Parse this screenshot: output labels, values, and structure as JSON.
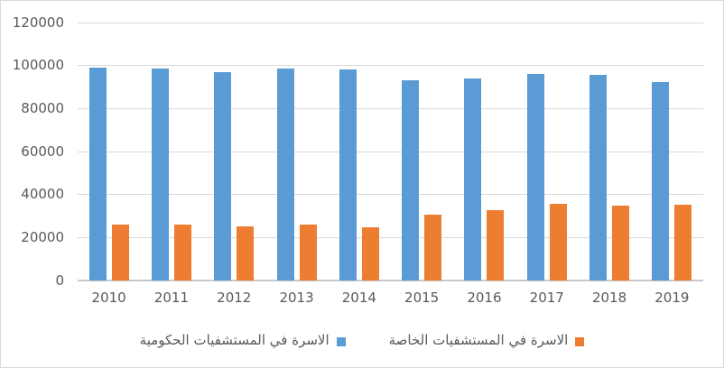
{
  "chart_data": {
    "type": "bar",
    "title": "",
    "xlabel": "",
    "ylabel": "",
    "categories": [
      "2010",
      "2011",
      "2012",
      "2013",
      "2014",
      "2015",
      "2016",
      "2017",
      "2018",
      "2019"
    ],
    "series": [
      {
        "name": "الاسرة في المستشفيات الحكومية",
        "color": "#5b9bd5",
        "values": [
          99000,
          98400,
          96600,
          98500,
          97900,
          93000,
          93900,
          96000,
          95500,
          92200
        ]
      },
      {
        "name": "الاسرة في المستشفيات الخاصة",
        "color": "#ed7d31",
        "values": [
          25600,
          25600,
          25000,
          25600,
          24400,
          30600,
          32400,
          35600,
          34800,
          35200
        ]
      }
    ],
    "ylim": [
      0,
      120000
    ],
    "ytick_step": 20000,
    "yticks": [
      "0",
      "20000",
      "40000",
      "60000",
      "80000",
      "100000",
      "120000"
    ],
    "grid": true,
    "legend_position": "bottom"
  },
  "colors": {
    "gridline": "#d9d9d9",
    "axis_line": "#c9c9c9",
    "tick_text": "#595959",
    "border": "#d9d9d9",
    "background": "#ffffff"
  }
}
